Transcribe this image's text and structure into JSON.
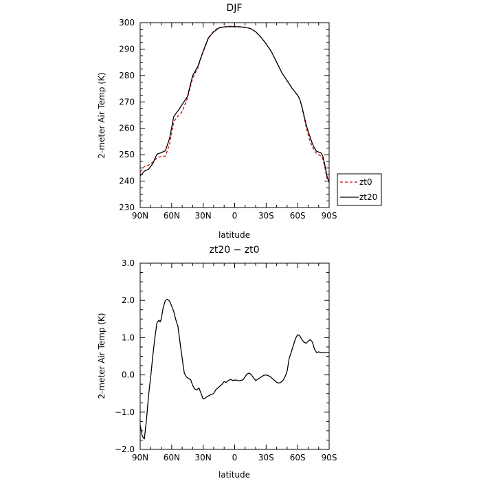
{
  "chart_data": [
    {
      "type": "line",
      "title": "DJF",
      "xlabel": "latitude",
      "ylabel": "2-meter Air Temp (K)",
      "xlim": [
        -90,
        90
      ],
      "ylim": [
        230,
        300
      ],
      "x_ticks": [
        -90,
        -60,
        -30,
        0,
        30,
        60,
        90
      ],
      "x_tick_labels": [
        "90N",
        "60N",
        "30N",
        "0",
        "30S",
        "60S",
        "90S"
      ],
      "y_ticks": [
        230,
        240,
        250,
        260,
        270,
        280,
        290,
        300
      ],
      "y_tick_labels": [
        "230",
        "240",
        "250",
        "260",
        "270",
        "280",
        "290",
        "300"
      ],
      "legend_position": "right",
      "series": [
        {
          "name": "zt0",
          "color": "#cc0000",
          "dash": "dashed",
          "x": [
            -90,
            -86,
            -82,
            -78,
            -74,
            -70,
            -66,
            -62,
            -58,
            -54,
            -50,
            -45,
            -40,
            -35,
            -30,
            -25,
            -20,
            -15,
            -10,
            -5,
            0,
            5,
            10,
            15,
            20,
            25,
            30,
            35,
            40,
            45,
            50,
            55,
            60,
            62,
            64,
            66,
            68,
            70,
            72,
            74,
            76,
            78,
            80,
            82,
            84,
            86,
            88,
            90
          ],
          "y": [
            243.5,
            245.5,
            246.0,
            247.2,
            248.8,
            249.3,
            249.5,
            254.0,
            262.5,
            264.6,
            266.3,
            271.5,
            279.0,
            283.0,
            289.0,
            294.0,
            296.8,
            298.2,
            298.4,
            298.6,
            298.6,
            298.5,
            298.3,
            297.8,
            296.5,
            294.5,
            292.0,
            289.0,
            285.0,
            281.0,
            278.0,
            275.0,
            272.5,
            271.0,
            268.0,
            264.5,
            260.5,
            257.5,
            255.0,
            253.0,
            251.5,
            250.5,
            250.0,
            249.5,
            248.5,
            245.0,
            241.0,
            239.5
          ]
        },
        {
          "name": "zt20",
          "color": "#000000",
          "dash": "solid",
          "x": [
            -90,
            -86,
            -82,
            -78,
            -74,
            -70,
            -66,
            -62,
            -58,
            -54,
            -50,
            -45,
            -40,
            -35,
            -30,
            -25,
            -20,
            -15,
            -10,
            -5,
            0,
            5,
            10,
            15,
            20,
            25,
            30,
            35,
            40,
            45,
            50,
            55,
            60,
            62,
            64,
            66,
            68,
            70,
            72,
            74,
            76,
            78,
            80,
            82,
            84,
            86,
            88,
            90
          ],
          "y": [
            242.0,
            243.8,
            244.5,
            246.6,
            250.2,
            250.8,
            251.5,
            256.2,
            264.5,
            266.6,
            269.0,
            272.0,
            280.0,
            283.5,
            289.2,
            294.3,
            296.5,
            298.0,
            298.4,
            298.5,
            298.5,
            298.4,
            298.2,
            297.8,
            296.6,
            294.5,
            292.0,
            289.0,
            285.0,
            281.0,
            278.0,
            275.0,
            272.5,
            271.0,
            268.3,
            265.0,
            261.5,
            259.0,
            256.5,
            254.2,
            252.5,
            251.3,
            251.0,
            250.8,
            249.5,
            246.0,
            241.8,
            239.5
          ]
        }
      ]
    },
    {
      "type": "line",
      "title": "zt20 − zt0",
      "xlabel": "latitude",
      "ylabel": "2-meter Air Temp (K)",
      "xlim": [
        -90,
        90
      ],
      "ylim": [
        -2.0,
        3.0
      ],
      "x_ticks": [
        -90,
        -60,
        -30,
        0,
        30,
        60,
        90
      ],
      "x_tick_labels": [
        "90N",
        "60N",
        "30N",
        "0",
        "30S",
        "60S",
        "90S"
      ],
      "y_ticks": [
        -2.0,
        -1.0,
        0.0,
        1.0,
        2.0,
        3.0
      ],
      "y_tick_labels": [
        "−2.0",
        "−1.0",
        "0.0",
        "1.0",
        "2.0",
        "3.0"
      ],
      "series": [
        {
          "color": "#000000",
          "dash": "solid",
          "x": [
            -90,
            -88,
            -86,
            -84,
            -82,
            -80,
            -78,
            -76,
            -74,
            -72,
            -71,
            -70,
            -68,
            -66,
            -64,
            -62,
            -60,
            -58,
            -56,
            -54,
            -52,
            -50,
            -48,
            -46,
            -44,
            -42,
            -40,
            -38,
            -36,
            -34,
            -32,
            -30,
            -28,
            -26,
            -24,
            -22,
            -20,
            -18,
            -16,
            -14,
            -12,
            -10,
            -8,
            -6,
            -4,
            -2,
            0,
            2,
            4,
            6,
            8,
            10,
            12,
            14,
            16,
            18,
            20,
            22,
            24,
            26,
            28,
            30,
            32,
            34,
            36,
            38,
            40,
            42,
            44,
            46,
            48,
            50,
            52,
            54,
            56,
            58,
            60,
            62,
            64,
            66,
            68,
            70,
            72,
            74,
            76,
            78,
            80,
            82,
            84,
            86,
            88,
            90
          ],
          "y": [
            -1.35,
            -1.65,
            -1.72,
            -1.2,
            -0.55,
            -0.05,
            0.5,
            1.0,
            1.4,
            1.47,
            1.42,
            1.5,
            1.82,
            2.0,
            2.03,
            1.98,
            1.85,
            1.7,
            1.48,
            1.3,
            0.85,
            0.45,
            0.05,
            -0.05,
            -0.1,
            -0.12,
            -0.28,
            -0.38,
            -0.4,
            -0.35,
            -0.5,
            -0.65,
            -0.62,
            -0.58,
            -0.55,
            -0.52,
            -0.5,
            -0.4,
            -0.35,
            -0.3,
            -0.25,
            -0.18,
            -0.2,
            -0.15,
            -0.12,
            -0.15,
            -0.14,
            -0.14,
            -0.16,
            -0.15,
            -0.13,
            -0.05,
            0.03,
            0.05,
            0.0,
            -0.08,
            -0.15,
            -0.12,
            -0.08,
            -0.04,
            -0.01,
            0.0,
            -0.02,
            -0.05,
            -0.1,
            -0.15,
            -0.2,
            -0.22,
            -0.2,
            -0.15,
            -0.05,
            0.1,
            0.45,
            0.62,
            0.8,
            0.98,
            1.08,
            1.05,
            0.95,
            0.88,
            0.85,
            0.9,
            0.95,
            0.88,
            0.7,
            0.6,
            0.62,
            0.6,
            0.6,
            0.6,
            0.6,
            0.6
          ]
        }
      ]
    }
  ]
}
